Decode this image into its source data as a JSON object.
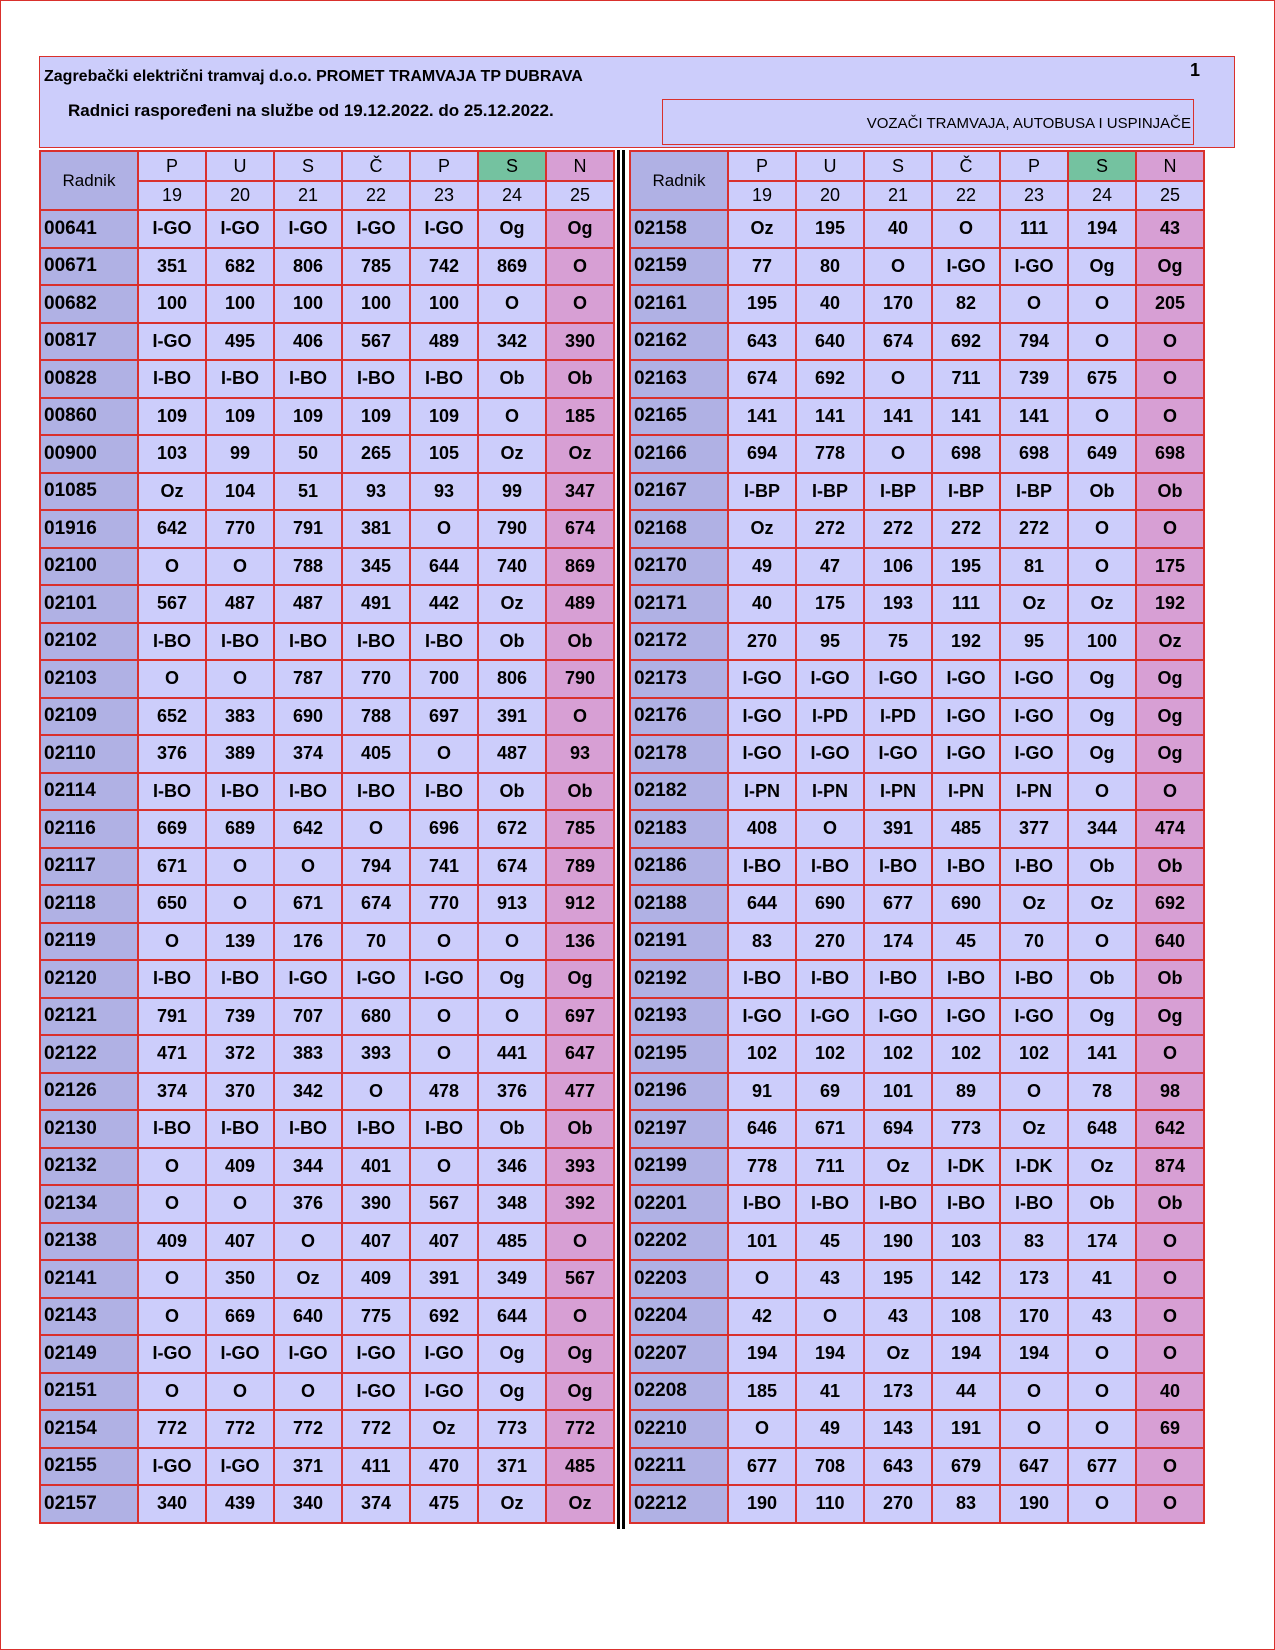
{
  "header": {
    "company": "Zagrebački električni tramvaj d.o.o. PROMET TRAMVAJA TP DUBRAVA",
    "page_number": "1",
    "subtitle": "Radnici raspoređeni na službe od 19.12.2022. do 25.12.2022.",
    "role": "VOZAČI TRAMVAJA, AUTOBUSA I USPINJAČE"
  },
  "table": {
    "name_header": "Radnik",
    "days": [
      "P",
      "U",
      "S",
      "Č",
      "P",
      "S",
      "N"
    ],
    "dates": [
      "19",
      "20",
      "21",
      "22",
      "23",
      "24",
      "25"
    ],
    "day_colors": {
      "saturday": "#74c2a0",
      "sunday": "#d79fd4",
      "cell": "#cccdfb",
      "name": "#b0b1e4"
    }
  },
  "left_rows": [
    [
      "00641",
      "I-GO",
      "I-GO",
      "I-GO",
      "I-GO",
      "I-GO",
      "Og",
      "Og"
    ],
    [
      "00671",
      "351",
      "682",
      "806",
      "785",
      "742",
      "869",
      "O"
    ],
    [
      "00682",
      "100",
      "100",
      "100",
      "100",
      "100",
      "O",
      "O"
    ],
    [
      "00817",
      "I-GO",
      "495",
      "406",
      "567",
      "489",
      "342",
      "390"
    ],
    [
      "00828",
      "I-BO",
      "I-BO",
      "I-BO",
      "I-BO",
      "I-BO",
      "Ob",
      "Ob"
    ],
    [
      "00860",
      "109",
      "109",
      "109",
      "109",
      "109",
      "O",
      "185"
    ],
    [
      "00900",
      "103",
      "99",
      "50",
      "265",
      "105",
      "Oz",
      "Oz"
    ],
    [
      "01085",
      "Oz",
      "104",
      "51",
      "93",
      "93",
      "99",
      "347"
    ],
    [
      "01916",
      "642",
      "770",
      "791",
      "381",
      "O",
      "790",
      "674"
    ],
    [
      "02100",
      "O",
      "O",
      "788",
      "345",
      "644",
      "740",
      "869"
    ],
    [
      "02101",
      "567",
      "487",
      "487",
      "491",
      "442",
      "Oz",
      "489"
    ],
    [
      "02102",
      "I-BO",
      "I-BO",
      "I-BO",
      "I-BO",
      "I-BO",
      "Ob",
      "Ob"
    ],
    [
      "02103",
      "O",
      "O",
      "787",
      "770",
      "700",
      "806",
      "790"
    ],
    [
      "02109",
      "652",
      "383",
      "690",
      "788",
      "697",
      "391",
      "O"
    ],
    [
      "02110",
      "376",
      "389",
      "374",
      "405",
      "O",
      "487",
      "93"
    ],
    [
      "02114",
      "I-BO",
      "I-BO",
      "I-BO",
      "I-BO",
      "I-BO",
      "Ob",
      "Ob"
    ],
    [
      "02116",
      "669",
      "689",
      "642",
      "O",
      "696",
      "672",
      "785"
    ],
    [
      "02117",
      "671",
      "O",
      "O",
      "794",
      "741",
      "674",
      "789"
    ],
    [
      "02118",
      "650",
      "O",
      "671",
      "674",
      "770",
      "913",
      "912"
    ],
    [
      "02119",
      "O",
      "139",
      "176",
      "70",
      "O",
      "O",
      "136"
    ],
    [
      "02120",
      "I-BO",
      "I-BO",
      "I-GO",
      "I-GO",
      "I-GO",
      "Og",
      "Og"
    ],
    [
      "02121",
      "791",
      "739",
      "707",
      "680",
      "O",
      "O",
      "697"
    ],
    [
      "02122",
      "471",
      "372",
      "383",
      "393",
      "O",
      "441",
      "647"
    ],
    [
      "02126",
      "374",
      "370",
      "342",
      "O",
      "478",
      "376",
      "477"
    ],
    [
      "02130",
      "I-BO",
      "I-BO",
      "I-BO",
      "I-BO",
      "I-BO",
      "Ob",
      "Ob"
    ],
    [
      "02132",
      "O",
      "409",
      "344",
      "401",
      "O",
      "346",
      "393"
    ],
    [
      "02134",
      "O",
      "O",
      "376",
      "390",
      "567",
      "348",
      "392"
    ],
    [
      "02138",
      "409",
      "407",
      "O",
      "407",
      "407",
      "485",
      "O"
    ],
    [
      "02141",
      "O",
      "350",
      "Oz",
      "409",
      "391",
      "349",
      "567"
    ],
    [
      "02143",
      "O",
      "669",
      "640",
      "775",
      "692",
      "644",
      "O"
    ],
    [
      "02149",
      "I-GO",
      "I-GO",
      "I-GO",
      "I-GO",
      "I-GO",
      "Og",
      "Og"
    ],
    [
      "02151",
      "O",
      "O",
      "O",
      "I-GO",
      "I-GO",
      "Og",
      "Og"
    ],
    [
      "02154",
      "772",
      "772",
      "772",
      "772",
      "Oz",
      "773",
      "772"
    ],
    [
      "02155",
      "I-GO",
      "I-GO",
      "371",
      "411",
      "470",
      "371",
      "485"
    ],
    [
      "02157",
      "340",
      "439",
      "340",
      "374",
      "475",
      "Oz",
      "Oz"
    ]
  ],
  "right_rows": [
    [
      "02158",
      "Oz",
      "195",
      "40",
      "O",
      "111",
      "194",
      "43"
    ],
    [
      "02159",
      "77",
      "80",
      "O",
      "I-GO",
      "I-GO",
      "Og",
      "Og"
    ],
    [
      "02161",
      "195",
      "40",
      "170",
      "82",
      "O",
      "O",
      "205"
    ],
    [
      "02162",
      "643",
      "640",
      "674",
      "692",
      "794",
      "O",
      "O"
    ],
    [
      "02163",
      "674",
      "692",
      "O",
      "711",
      "739",
      "675",
      "O"
    ],
    [
      "02165",
      "141",
      "141",
      "141",
      "141",
      "141",
      "O",
      "O"
    ],
    [
      "02166",
      "694",
      "778",
      "O",
      "698",
      "698",
      "649",
      "698"
    ],
    [
      "02167",
      "I-BP",
      "I-BP",
      "I-BP",
      "I-BP",
      "I-BP",
      "Ob",
      "Ob"
    ],
    [
      "02168",
      "Oz",
      "272",
      "272",
      "272",
      "272",
      "O",
      "O"
    ],
    [
      "02170",
      "49",
      "47",
      "106",
      "195",
      "81",
      "O",
      "175"
    ],
    [
      "02171",
      "40",
      "175",
      "193",
      "111",
      "Oz",
      "Oz",
      "192"
    ],
    [
      "02172",
      "270",
      "95",
      "75",
      "192",
      "95",
      "100",
      "Oz"
    ],
    [
      "02173",
      "I-GO",
      "I-GO",
      "I-GO",
      "I-GO",
      "I-GO",
      "Og",
      "Og"
    ],
    [
      "02176",
      "I-GO",
      "I-PD",
      "I-PD",
      "I-GO",
      "I-GO",
      "Og",
      "Og"
    ],
    [
      "02178",
      "I-GO",
      "I-GO",
      "I-GO",
      "I-GO",
      "I-GO",
      "Og",
      "Og"
    ],
    [
      "02182",
      "I-PN",
      "I-PN",
      "I-PN",
      "I-PN",
      "I-PN",
      "O",
      "O"
    ],
    [
      "02183",
      "408",
      "O",
      "391",
      "485",
      "377",
      "344",
      "474"
    ],
    [
      "02186",
      "I-BO",
      "I-BO",
      "I-BO",
      "I-BO",
      "I-BO",
      "Ob",
      "Ob"
    ],
    [
      "02188",
      "644",
      "690",
      "677",
      "690",
      "Oz",
      "Oz",
      "692"
    ],
    [
      "02191",
      "83",
      "270",
      "174",
      "45",
      "70",
      "O",
      "640"
    ],
    [
      "02192",
      "I-BO",
      "I-BO",
      "I-BO",
      "I-BO",
      "I-BO",
      "Ob",
      "Ob"
    ],
    [
      "02193",
      "I-GO",
      "I-GO",
      "I-GO",
      "I-GO",
      "I-GO",
      "Og",
      "Og"
    ],
    [
      "02195",
      "102",
      "102",
      "102",
      "102",
      "102",
      "141",
      "O"
    ],
    [
      "02196",
      "91",
      "69",
      "101",
      "89",
      "O",
      "78",
      "98"
    ],
    [
      "02197",
      "646",
      "671",
      "694",
      "773",
      "Oz",
      "648",
      "642"
    ],
    [
      "02199",
      "778",
      "711",
      "Oz",
      "I-DK",
      "I-DK",
      "Oz",
      "874"
    ],
    [
      "02201",
      "I-BO",
      "I-BO",
      "I-BO",
      "I-BO",
      "I-BO",
      "Ob",
      "Ob"
    ],
    [
      "02202",
      "101",
      "45",
      "190",
      "103",
      "83",
      "174",
      "O"
    ],
    [
      "02203",
      "O",
      "43",
      "195",
      "142",
      "173",
      "41",
      "O"
    ],
    [
      "02204",
      "42",
      "O",
      "43",
      "108",
      "170",
      "43",
      "O"
    ],
    [
      "02207",
      "194",
      "194",
      "Oz",
      "194",
      "194",
      "O",
      "O"
    ],
    [
      "02208",
      "185",
      "41",
      "173",
      "44",
      "O",
      "O",
      "40"
    ],
    [
      "02210",
      "O",
      "49",
      "143",
      "191",
      "O",
      "O",
      "69"
    ],
    [
      "02211",
      "677",
      "708",
      "643",
      "679",
      "647",
      "677",
      "O"
    ],
    [
      "02212",
      "190",
      "110",
      "270",
      "83",
      "190",
      "O",
      "O"
    ]
  ]
}
